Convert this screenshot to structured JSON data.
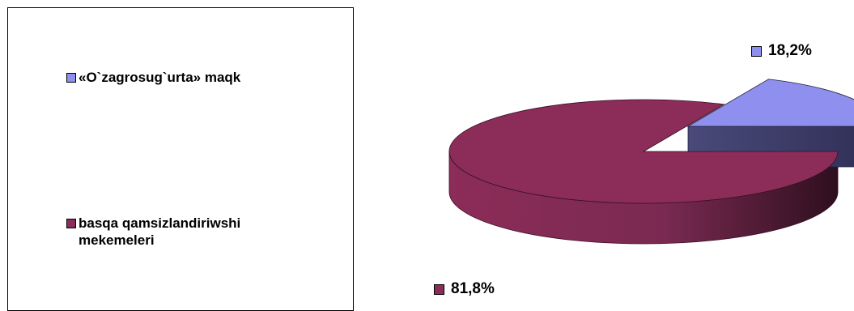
{
  "chart_data": {
    "type": "pie",
    "style": "3d",
    "categories": [
      "«O`zagrosug`urta» maqk",
      "basqa qamsizlandiriwshi mekemeleri"
    ],
    "values": [
      18.2,
      81.8
    ],
    "data_labels": [
      "18,2%",
      "81,8%"
    ],
    "colors": [
      "#8F8FEF",
      "#8C2C58"
    ],
    "legend_position": "left"
  }
}
